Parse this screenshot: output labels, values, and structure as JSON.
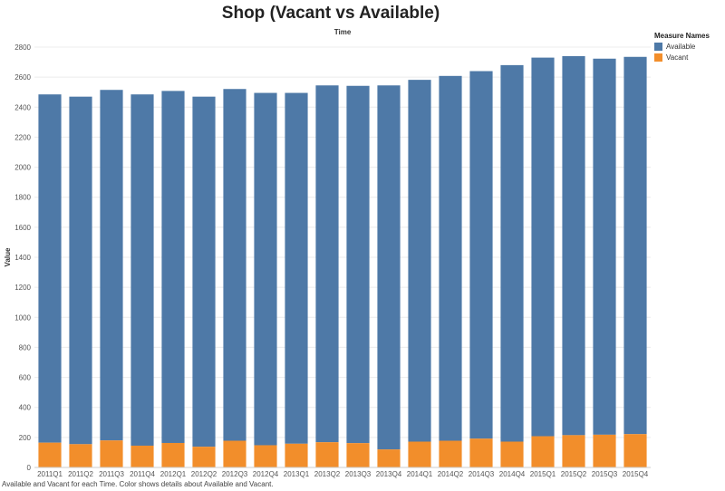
{
  "chart_data": {
    "type": "bar",
    "stacked": true,
    "title": "Shop (Vacant vs Available)",
    "column_header": "Time",
    "ylabel": "Value",
    "ylim": [
      0,
      2800
    ],
    "yticks": [
      0,
      200,
      400,
      600,
      800,
      1000,
      1200,
      1400,
      1600,
      1800,
      2000,
      2200,
      2400,
      2600,
      2800
    ],
    "categories": [
      "2011Q1",
      "2011Q2",
      "2011Q3",
      "2011Q4",
      "2012Q1",
      "2012Q2",
      "2012Q3",
      "2012Q4",
      "2013Q1",
      "2013Q2",
      "2013Q3",
      "2013Q4",
      "2014Q1",
      "2014Q2",
      "2014Q3",
      "2014Q4",
      "2015Q1",
      "2015Q2",
      "2015Q3",
      "2015Q4"
    ],
    "series": [
      {
        "name": "Vacant",
        "color": "#f28e2b",
        "values": [
          165,
          155,
          180,
          145,
          163,
          138,
          178,
          148,
          158,
          168,
          162,
          120,
          172,
          178,
          192,
          172,
          208,
          215,
          218,
          222
        ]
      },
      {
        "name": "Available",
        "color": "#4e79a7",
        "values": [
          2320,
          2315,
          2335,
          2340,
          2345,
          2332,
          2343,
          2347,
          2337,
          2377,
          2380,
          2425,
          2410,
          2430,
          2448,
          2508,
          2522,
          2525,
          2505,
          2513
        ]
      }
    ],
    "grid": true,
    "legend": {
      "title": "Measure Names",
      "placement": "top-right",
      "items": [
        {
          "label": "Available",
          "color": "#4e79a7"
        },
        {
          "label": "Vacant",
          "color": "#f28e2b"
        }
      ]
    },
    "caption": "Available and Vacant for each Time.  Color shows details about Available and Vacant."
  }
}
